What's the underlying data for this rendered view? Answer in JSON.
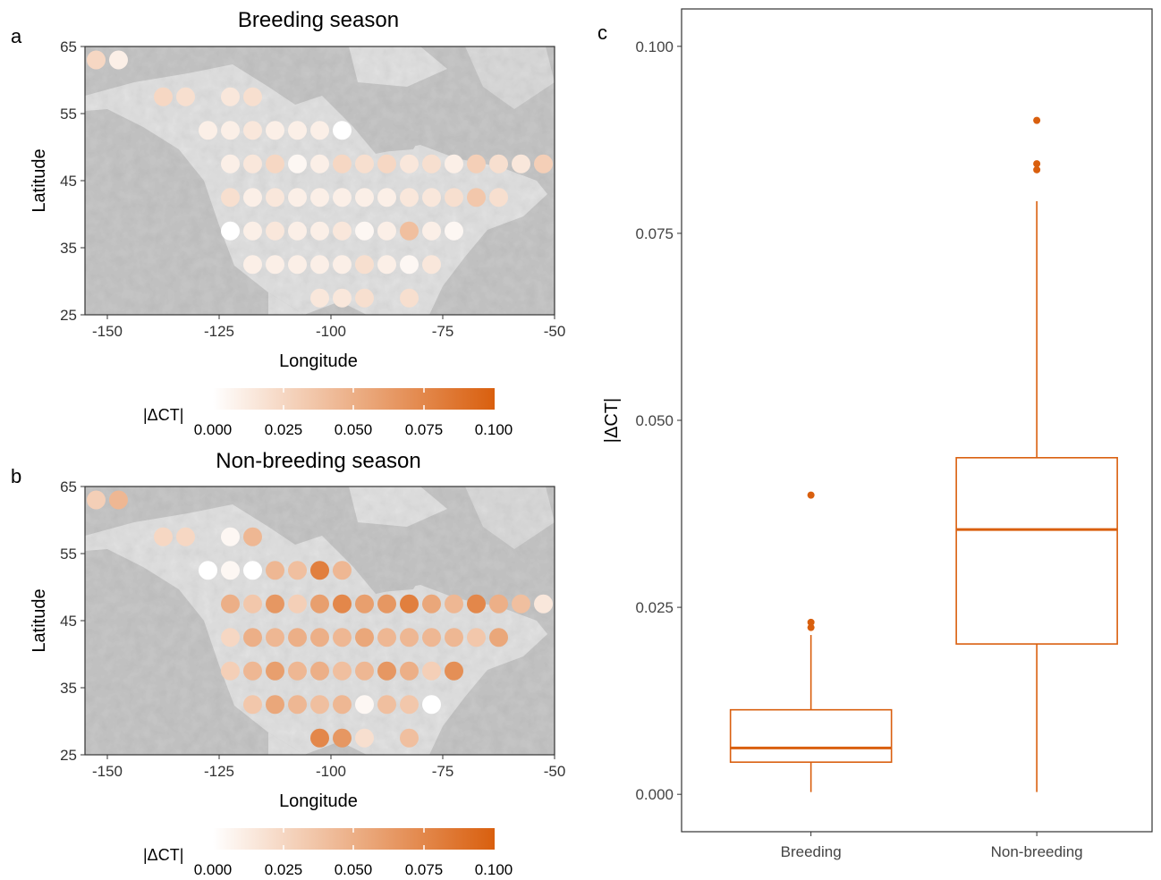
{
  "panels": {
    "a": {
      "letter": "a",
      "title": "Breeding season",
      "xlabel": "Longitude",
      "ylabel": "Latitude",
      "legend_title": "|ΔCT|",
      "legend_ticks": [
        "0.000",
        "0.025",
        "0.050",
        "0.075",
        "0.100"
      ]
    },
    "b": {
      "letter": "b",
      "title": "Non-breeding season",
      "xlabel": "Longitude",
      "ylabel": "Latitude",
      "legend_title": "|ΔCT|",
      "legend_ticks": [
        "0.000",
        "0.025",
        "0.050",
        "0.075",
        "0.100"
      ]
    },
    "c": {
      "letter": "c",
      "ylabel": "|ΔCT|"
    }
  },
  "colors": {
    "low": "#ffffff",
    "high": "#d95f0e",
    "box": "#d95f0e",
    "map_ocean": "#c8c8c8",
    "map_land": "#e0e0e0"
  },
  "chart_data": [
    {
      "type": "scatter",
      "panel": "a",
      "title": "Breeding season",
      "xlabel": "Longitude",
      "ylabel": "Latitude",
      "xlim": [
        -155,
        -50
      ],
      "ylim": [
        25,
        65
      ],
      "xticks": [
        "-150",
        "-125",
        "-100",
        "-75",
        "-50"
      ],
      "yticks": [
        "25",
        "35",
        "45",
        "55",
        "65"
      ],
      "color_scale": {
        "label": "|ΔCT|",
        "min": 0,
        "max": 0.1
      },
      "points": [
        {
          "lon": -152.5,
          "lat": 63,
          "v": 0.025
        },
        {
          "lon": -147.5,
          "lat": 63,
          "v": 0.01
        },
        {
          "lon": -137.5,
          "lat": 57.5,
          "v": 0.025
        },
        {
          "lon": -132.5,
          "lat": 57.5,
          "v": 0.02
        },
        {
          "lon": -122.5,
          "lat": 57.5,
          "v": 0.015
        },
        {
          "lon": -117.5,
          "lat": 57.5,
          "v": 0.02
        },
        {
          "lon": -127.5,
          "lat": 52.5,
          "v": 0.01
        },
        {
          "lon": -122.5,
          "lat": 52.5,
          "v": 0.01
        },
        {
          "lon": -117.5,
          "lat": 52.5,
          "v": 0.015
        },
        {
          "lon": -112.5,
          "lat": 52.5,
          "v": 0.01
        },
        {
          "lon": -107.5,
          "lat": 52.5,
          "v": 0.01
        },
        {
          "lon": -102.5,
          "lat": 52.5,
          "v": 0.01
        },
        {
          "lon": -97.5,
          "lat": 52.5,
          "v": 0.0
        },
        {
          "lon": -122.5,
          "lat": 47.5,
          "v": 0.01
        },
        {
          "lon": -117.5,
          "lat": 47.5,
          "v": 0.015
        },
        {
          "lon": -112.5,
          "lat": 47.5,
          "v": 0.025
        },
        {
          "lon": -107.5,
          "lat": 47.5,
          "v": 0.005
        },
        {
          "lon": -102.5,
          "lat": 47.5,
          "v": 0.01
        },
        {
          "lon": -97.5,
          "lat": 47.5,
          "v": 0.025
        },
        {
          "lon": -92.5,
          "lat": 47.5,
          "v": 0.02
        },
        {
          "lon": -87.5,
          "lat": 47.5,
          "v": 0.025
        },
        {
          "lon": -82.5,
          "lat": 47.5,
          "v": 0.015
        },
        {
          "lon": -77.5,
          "lat": 47.5,
          "v": 0.02
        },
        {
          "lon": -72.5,
          "lat": 47.5,
          "v": 0.01
        },
        {
          "lon": -67.5,
          "lat": 47.5,
          "v": 0.03
        },
        {
          "lon": -62.5,
          "lat": 47.5,
          "v": 0.02
        },
        {
          "lon": -57.5,
          "lat": 47.5,
          "v": 0.015
        },
        {
          "lon": -52.5,
          "lat": 47.5,
          "v": 0.03
        },
        {
          "lon": -122.5,
          "lat": 42.5,
          "v": 0.02
        },
        {
          "lon": -117.5,
          "lat": 42.5,
          "v": 0.01
        },
        {
          "lon": -112.5,
          "lat": 42.5,
          "v": 0.015
        },
        {
          "lon": -107.5,
          "lat": 42.5,
          "v": 0.01
        },
        {
          "lon": -102.5,
          "lat": 42.5,
          "v": 0.01
        },
        {
          "lon": -97.5,
          "lat": 42.5,
          "v": 0.01
        },
        {
          "lon": -92.5,
          "lat": 42.5,
          "v": 0.01
        },
        {
          "lon": -87.5,
          "lat": 42.5,
          "v": 0.01
        },
        {
          "lon": -82.5,
          "lat": 42.5,
          "v": 0.015
        },
        {
          "lon": -77.5,
          "lat": 42.5,
          "v": 0.015
        },
        {
          "lon": -72.5,
          "lat": 42.5,
          "v": 0.02
        },
        {
          "lon": -67.5,
          "lat": 42.5,
          "v": 0.035
        },
        {
          "lon": -62.5,
          "lat": 42.5,
          "v": 0.02
        },
        {
          "lon": -122.5,
          "lat": 37.5,
          "v": 0.0
        },
        {
          "lon": -117.5,
          "lat": 37.5,
          "v": 0.01
        },
        {
          "lon": -112.5,
          "lat": 37.5,
          "v": 0.015
        },
        {
          "lon": -107.5,
          "lat": 37.5,
          "v": 0.01
        },
        {
          "lon": -102.5,
          "lat": 37.5,
          "v": 0.01
        },
        {
          "lon": -97.5,
          "lat": 37.5,
          "v": 0.015
        },
        {
          "lon": -92.5,
          "lat": 37.5,
          "v": 0.005
        },
        {
          "lon": -87.5,
          "lat": 37.5,
          "v": 0.01
        },
        {
          "lon": -82.5,
          "lat": 37.5,
          "v": 0.04
        },
        {
          "lon": -77.5,
          "lat": 37.5,
          "v": 0.01
        },
        {
          "lon": -72.5,
          "lat": 37.5,
          "v": 0.005
        },
        {
          "lon": -117.5,
          "lat": 32.5,
          "v": 0.01
        },
        {
          "lon": -112.5,
          "lat": 32.5,
          "v": 0.01
        },
        {
          "lon": -107.5,
          "lat": 32.5,
          "v": 0.01
        },
        {
          "lon": -102.5,
          "lat": 32.5,
          "v": 0.01
        },
        {
          "lon": -97.5,
          "lat": 32.5,
          "v": 0.01
        },
        {
          "lon": -92.5,
          "lat": 32.5,
          "v": 0.02
        },
        {
          "lon": -87.5,
          "lat": 32.5,
          "v": 0.01
        },
        {
          "lon": -82.5,
          "lat": 32.5,
          "v": 0.005
        },
        {
          "lon": -77.5,
          "lat": 32.5,
          "v": 0.015
        },
        {
          "lon": -102.5,
          "lat": 27.5,
          "v": 0.015
        },
        {
          "lon": -97.5,
          "lat": 27.5,
          "v": 0.015
        },
        {
          "lon": -92.5,
          "lat": 27.5,
          "v": 0.02
        },
        {
          "lon": -82.5,
          "lat": 27.5,
          "v": 0.02
        }
      ]
    },
    {
      "type": "scatter",
      "panel": "b",
      "title": "Non-breeding season",
      "xlabel": "Longitude",
      "ylabel": "Latitude",
      "xlim": [
        -155,
        -50
      ],
      "ylim": [
        25,
        65
      ],
      "xticks": [
        "-150",
        "-125",
        "-100",
        "-75",
        "-50"
      ],
      "yticks": [
        "25",
        "35",
        "45",
        "55",
        "65"
      ],
      "color_scale": {
        "label": "|ΔCT|",
        "min": 0,
        "max": 0.1
      },
      "points": [
        {
          "lon": -152.5,
          "lat": 63,
          "v": 0.03
        },
        {
          "lon": -147.5,
          "lat": 63,
          "v": 0.045
        },
        {
          "lon": -137.5,
          "lat": 57.5,
          "v": 0.025
        },
        {
          "lon": -132.5,
          "lat": 57.5,
          "v": 0.025
        },
        {
          "lon": -122.5,
          "lat": 57.5,
          "v": 0.005
        },
        {
          "lon": -117.5,
          "lat": 57.5,
          "v": 0.045
        },
        {
          "lon": -127.5,
          "lat": 52.5,
          "v": 0.0
        },
        {
          "lon": -122.5,
          "lat": 52.5,
          "v": 0.005
        },
        {
          "lon": -117.5,
          "lat": 52.5,
          "v": 0.0
        },
        {
          "lon": -112.5,
          "lat": 52.5,
          "v": 0.045
        },
        {
          "lon": -107.5,
          "lat": 52.5,
          "v": 0.04
        },
        {
          "lon": -102.5,
          "lat": 52.5,
          "v": 0.08
        },
        {
          "lon": -97.5,
          "lat": 52.5,
          "v": 0.045
        },
        {
          "lon": -122.5,
          "lat": 47.5,
          "v": 0.05
        },
        {
          "lon": -117.5,
          "lat": 47.5,
          "v": 0.035
        },
        {
          "lon": -112.5,
          "lat": 47.5,
          "v": 0.065
        },
        {
          "lon": -107.5,
          "lat": 47.5,
          "v": 0.03
        },
        {
          "lon": -102.5,
          "lat": 47.5,
          "v": 0.06
        },
        {
          "lon": -97.5,
          "lat": 47.5,
          "v": 0.075
        },
        {
          "lon": -92.5,
          "lat": 47.5,
          "v": 0.06
        },
        {
          "lon": -87.5,
          "lat": 47.5,
          "v": 0.065
        },
        {
          "lon": -82.5,
          "lat": 47.5,
          "v": 0.08
        },
        {
          "lon": -77.5,
          "lat": 47.5,
          "v": 0.055
        },
        {
          "lon": -72.5,
          "lat": 47.5,
          "v": 0.045
        },
        {
          "lon": -67.5,
          "lat": 47.5,
          "v": 0.075
        },
        {
          "lon": -62.5,
          "lat": 47.5,
          "v": 0.05
        },
        {
          "lon": -57.5,
          "lat": 47.5,
          "v": 0.04
        },
        {
          "lon": -52.5,
          "lat": 47.5,
          "v": 0.015
        },
        {
          "lon": -122.5,
          "lat": 42.5,
          "v": 0.025
        },
        {
          "lon": -117.5,
          "lat": 42.5,
          "v": 0.05
        },
        {
          "lon": -112.5,
          "lat": 42.5,
          "v": 0.045
        },
        {
          "lon": -107.5,
          "lat": 42.5,
          "v": 0.05
        },
        {
          "lon": -102.5,
          "lat": 42.5,
          "v": 0.05
        },
        {
          "lon": -97.5,
          "lat": 42.5,
          "v": 0.045
        },
        {
          "lon": -92.5,
          "lat": 42.5,
          "v": 0.055
        },
        {
          "lon": -87.5,
          "lat": 42.5,
          "v": 0.045
        },
        {
          "lon": -82.5,
          "lat": 42.5,
          "v": 0.045
        },
        {
          "lon": -77.5,
          "lat": 42.5,
          "v": 0.045
        },
        {
          "lon": -72.5,
          "lat": 42.5,
          "v": 0.045
        },
        {
          "lon": -67.5,
          "lat": 42.5,
          "v": 0.035
        },
        {
          "lon": -62.5,
          "lat": 42.5,
          "v": 0.055
        },
        {
          "lon": -122.5,
          "lat": 37.5,
          "v": 0.03
        },
        {
          "lon": -117.5,
          "lat": 37.5,
          "v": 0.045
        },
        {
          "lon": -112.5,
          "lat": 37.5,
          "v": 0.06
        },
        {
          "lon": -107.5,
          "lat": 37.5,
          "v": 0.045
        },
        {
          "lon": -102.5,
          "lat": 37.5,
          "v": 0.05
        },
        {
          "lon": -97.5,
          "lat": 37.5,
          "v": 0.04
        },
        {
          "lon": -92.5,
          "lat": 37.5,
          "v": 0.045
        },
        {
          "lon": -87.5,
          "lat": 37.5,
          "v": 0.065
        },
        {
          "lon": -82.5,
          "lat": 37.5,
          "v": 0.05
        },
        {
          "lon": -77.5,
          "lat": 37.5,
          "v": 0.03
        },
        {
          "lon": -72.5,
          "lat": 37.5,
          "v": 0.07
        },
        {
          "lon": -117.5,
          "lat": 32.5,
          "v": 0.035
        },
        {
          "lon": -112.5,
          "lat": 32.5,
          "v": 0.055
        },
        {
          "lon": -107.5,
          "lat": 32.5,
          "v": 0.045
        },
        {
          "lon": -102.5,
          "lat": 32.5,
          "v": 0.04
        },
        {
          "lon": -97.5,
          "lat": 32.5,
          "v": 0.045
        },
        {
          "lon": -92.5,
          "lat": 32.5,
          "v": 0.005
        },
        {
          "lon": -87.5,
          "lat": 32.5,
          "v": 0.04
        },
        {
          "lon": -82.5,
          "lat": 32.5,
          "v": 0.035
        },
        {
          "lon": -77.5,
          "lat": 32.5,
          "v": 0.0
        },
        {
          "lon": -102.5,
          "lat": 27.5,
          "v": 0.075
        },
        {
          "lon": -97.5,
          "lat": 27.5,
          "v": 0.065
        },
        {
          "lon": -92.5,
          "lat": 27.5,
          "v": 0.02
        },
        {
          "lon": -82.5,
          "lat": 27.5,
          "v": 0.04
        }
      ]
    },
    {
      "type": "box",
      "panel": "c",
      "ylabel": "|ΔCT|",
      "ylim": [
        -0.005,
        0.105
      ],
      "yticks": [
        "0.000",
        "0.025",
        "0.050",
        "0.075",
        "0.100"
      ],
      "categories": [
        "Breeding",
        "Non-breeding"
      ],
      "boxes": [
        {
          "name": "Breeding",
          "min": 0.0003,
          "q1": 0.0043,
          "median": 0.0062,
          "q3": 0.0113,
          "max": 0.0213,
          "outliers": [
            0.0223,
            0.023,
            0.04
          ]
        },
        {
          "name": "Non-breeding",
          "min": 0.0003,
          "q1": 0.0201,
          "median": 0.0354,
          "q3": 0.045,
          "max": 0.0793,
          "outliers": [
            0.0835,
            0.0843,
            0.0901
          ]
        }
      ]
    }
  ]
}
